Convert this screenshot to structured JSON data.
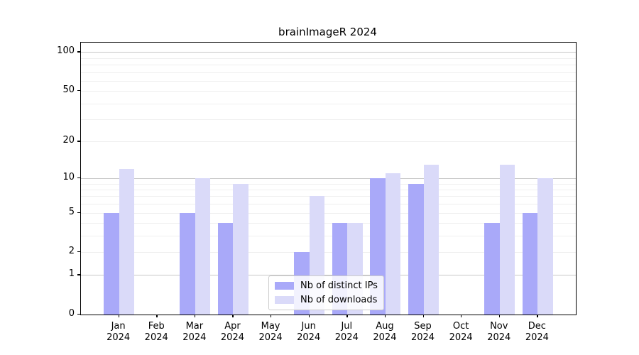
{
  "chart_data": {
    "type": "bar",
    "title": "brainImageR 2024",
    "categories": [
      "Jan",
      "Feb",
      "Mar",
      "Apr",
      "May",
      "Jun",
      "Jul",
      "Aug",
      "Sep",
      "Oct",
      "Nov",
      "Dec"
    ],
    "category_year": "2024",
    "series": [
      {
        "name": "Nb of distinct IPs",
        "color": "#a9a9f9",
        "values": [
          5,
          0,
          5,
          4,
          0,
          2,
          4,
          10,
          9,
          0,
          4,
          5
        ]
      },
      {
        "name": "Nb of downloads",
        "color": "#dadaf9",
        "values": [
          12,
          0,
          10,
          9,
          0,
          7,
          4,
          11,
          13,
          0,
          13,
          10
        ]
      }
    ],
    "xlabel": "",
    "ylabel": "",
    "yscale": "log1p",
    "ylim_top_value": 118.5,
    "yticks": [
      0,
      1,
      2,
      5,
      10,
      20,
      50,
      100
    ],
    "ytick_labels": [
      "0",
      "1",
      "2",
      "5",
      "10",
      "20",
      "50",
      "100"
    ],
    "grid_major_values": [
      1,
      10,
      100
    ],
    "grid_minor_values": [
      2,
      3,
      4,
      5,
      6,
      7,
      8,
      9,
      20,
      30,
      40,
      50,
      60,
      70,
      80,
      90
    ],
    "grid": "on",
    "legend_position": "lower center",
    "colors": {
      "axis": "#000000",
      "grid_major": "#c8c8c8",
      "grid_minor": "#efefef",
      "text": "#000000",
      "background": "#ffffff"
    }
  }
}
